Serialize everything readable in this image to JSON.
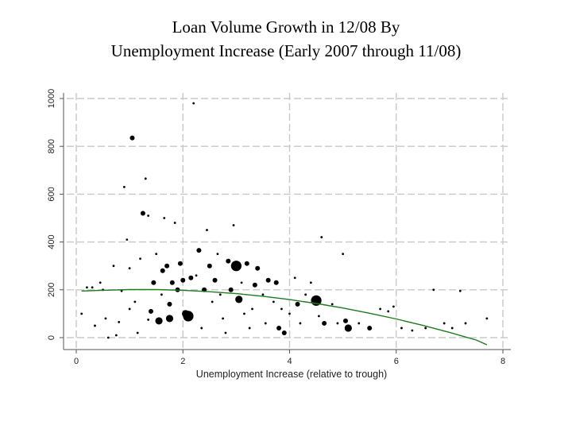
{
  "title": {
    "line1": "Loan Volume Growth in 12/08 By",
    "line2": "Unemployment Increase (Early 2007 through 11/08)"
  },
  "colors": {
    "points": "#000000",
    "fit_line": "#1e7a1e",
    "grid": "#c8c8c8",
    "axis": "#555555"
  },
  "chart_data": {
    "type": "scatter",
    "title": "Loan Volume Growth in 12/08 By Unemployment Increase (Early 2007 through 11/08)",
    "xlabel": "Unemployment Increase (relative to trough)",
    "ylabel": "",
    "xlim": [
      0,
      8
    ],
    "ylim": [
      0,
      1000
    ],
    "xticks": [
      0,
      2,
      4,
      6,
      8
    ],
    "yticks": [
      0,
      200,
      400,
      600,
      800,
      1000
    ],
    "grid": true,
    "bubble_size_meaning": "relative weight",
    "points": [
      {
        "x": 0.1,
        "y": 100,
        "s": 1
      },
      {
        "x": 0.2,
        "y": 210,
        "s": 1
      },
      {
        "x": 0.3,
        "y": 210,
        "s": 1
      },
      {
        "x": 0.35,
        "y": 50,
        "s": 1
      },
      {
        "x": 0.45,
        "y": 230,
        "s": 1
      },
      {
        "x": 0.5,
        "y": 200,
        "s": 1
      },
      {
        "x": 0.55,
        "y": 80,
        "s": 1
      },
      {
        "x": 0.6,
        "y": 0,
        "s": 1
      },
      {
        "x": 0.7,
        "y": 300,
        "s": 1
      },
      {
        "x": 0.75,
        "y": 10,
        "s": 1
      },
      {
        "x": 0.8,
        "y": 65,
        "s": 1
      },
      {
        "x": 0.85,
        "y": 195,
        "s": 1
      },
      {
        "x": 0.9,
        "y": 630,
        "s": 1
      },
      {
        "x": 0.95,
        "y": 410,
        "s": 1
      },
      {
        "x": 1.0,
        "y": 290,
        "s": 1
      },
      {
        "x": 1.0,
        "y": 120,
        "s": 1
      },
      {
        "x": 1.05,
        "y": 835,
        "s": 2
      },
      {
        "x": 1.1,
        "y": 150,
        "s": 1
      },
      {
        "x": 1.15,
        "y": 20,
        "s": 1
      },
      {
        "x": 1.2,
        "y": 330,
        "s": 1
      },
      {
        "x": 1.25,
        "y": 520,
        "s": 2
      },
      {
        "x": 1.3,
        "y": 665,
        "s": 1
      },
      {
        "x": 1.35,
        "y": 510,
        "s": 1
      },
      {
        "x": 1.35,
        "y": 75,
        "s": 1
      },
      {
        "x": 1.4,
        "y": 110,
        "s": 2
      },
      {
        "x": 1.45,
        "y": 230,
        "s": 2
      },
      {
        "x": 1.5,
        "y": 350,
        "s": 1
      },
      {
        "x": 1.55,
        "y": 70,
        "s": 3
      },
      {
        "x": 1.6,
        "y": 180,
        "s": 1
      },
      {
        "x": 1.62,
        "y": 280,
        "s": 2
      },
      {
        "x": 1.65,
        "y": 500,
        "s": 1
      },
      {
        "x": 1.7,
        "y": 300,
        "s": 2
      },
      {
        "x": 1.75,
        "y": 140,
        "s": 2
      },
      {
        "x": 1.75,
        "y": 80,
        "s": 3
      },
      {
        "x": 1.8,
        "y": 230,
        "s": 2
      },
      {
        "x": 1.85,
        "y": 480,
        "s": 1
      },
      {
        "x": 1.9,
        "y": 200,
        "s": 2
      },
      {
        "x": 1.95,
        "y": 310,
        "s": 2
      },
      {
        "x": 2.0,
        "y": 240,
        "s": 2
      },
      {
        "x": 2.05,
        "y": 100,
        "s": 3
      },
      {
        "x": 2.1,
        "y": 90,
        "s": 4
      },
      {
        "x": 2.15,
        "y": 250,
        "s": 2
      },
      {
        "x": 2.2,
        "y": 980,
        "s": 1
      },
      {
        "x": 2.25,
        "y": 260,
        "s": 1
      },
      {
        "x": 2.3,
        "y": 365,
        "s": 2
      },
      {
        "x": 2.35,
        "y": 40,
        "s": 1
      },
      {
        "x": 2.4,
        "y": 200,
        "s": 2
      },
      {
        "x": 2.45,
        "y": 450,
        "s": 1
      },
      {
        "x": 2.5,
        "y": 300,
        "s": 2
      },
      {
        "x": 2.55,
        "y": 150,
        "s": 1
      },
      {
        "x": 2.6,
        "y": 240,
        "s": 2
      },
      {
        "x": 2.65,
        "y": 350,
        "s": 1
      },
      {
        "x": 2.7,
        "y": 180,
        "s": 1
      },
      {
        "x": 2.75,
        "y": 80,
        "s": 1
      },
      {
        "x": 2.8,
        "y": 20,
        "s": 1
      },
      {
        "x": 2.85,
        "y": 320,
        "s": 2
      },
      {
        "x": 2.9,
        "y": 200,
        "s": 2
      },
      {
        "x": 2.95,
        "y": 470,
        "s": 1
      },
      {
        "x": 3.0,
        "y": 300,
        "s": 4
      },
      {
        "x": 3.05,
        "y": 160,
        "s": 3
      },
      {
        "x": 3.1,
        "y": 230,
        "s": 1
      },
      {
        "x": 3.15,
        "y": 100,
        "s": 1
      },
      {
        "x": 3.2,
        "y": 310,
        "s": 2
      },
      {
        "x": 3.25,
        "y": 40,
        "s": 1
      },
      {
        "x": 3.3,
        "y": 120,
        "s": 1
      },
      {
        "x": 3.35,
        "y": 220,
        "s": 2
      },
      {
        "x": 3.4,
        "y": 290,
        "s": 2
      },
      {
        "x": 3.5,
        "y": 180,
        "s": 1
      },
      {
        "x": 3.55,
        "y": 60,
        "s": 1
      },
      {
        "x": 3.6,
        "y": 240,
        "s": 2
      },
      {
        "x": 3.7,
        "y": 150,
        "s": 1
      },
      {
        "x": 3.75,
        "y": 230,
        "s": 2
      },
      {
        "x": 3.8,
        "y": 40,
        "s": 2
      },
      {
        "x": 3.85,
        "y": 120,
        "s": 1
      },
      {
        "x": 3.9,
        "y": 20,
        "s": 2
      },
      {
        "x": 4.0,
        "y": 100,
        "s": 1
      },
      {
        "x": 4.1,
        "y": 250,
        "s": 1
      },
      {
        "x": 4.15,
        "y": 140,
        "s": 2
      },
      {
        "x": 4.2,
        "y": 60,
        "s": 1
      },
      {
        "x": 4.3,
        "y": 180,
        "s": 1
      },
      {
        "x": 4.4,
        "y": 230,
        "s": 1
      },
      {
        "x": 4.5,
        "y": 155,
        "s": 4
      },
      {
        "x": 4.55,
        "y": 90,
        "s": 1
      },
      {
        "x": 4.6,
        "y": 420,
        "s": 1
      },
      {
        "x": 4.65,
        "y": 60,
        "s": 2
      },
      {
        "x": 4.8,
        "y": 140,
        "s": 1
      },
      {
        "x": 4.9,
        "y": 60,
        "s": 1
      },
      {
        "x": 5.0,
        "y": 350,
        "s": 1
      },
      {
        "x": 5.05,
        "y": 70,
        "s": 2
      },
      {
        "x": 5.1,
        "y": 40,
        "s": 3
      },
      {
        "x": 5.3,
        "y": 60,
        "s": 1
      },
      {
        "x": 5.5,
        "y": 40,
        "s": 2
      },
      {
        "x": 5.7,
        "y": 120,
        "s": 1
      },
      {
        "x": 5.85,
        "y": 110,
        "s": 1
      },
      {
        "x": 5.95,
        "y": 130,
        "s": 1
      },
      {
        "x": 6.1,
        "y": 40,
        "s": 1
      },
      {
        "x": 6.3,
        "y": 30,
        "s": 1
      },
      {
        "x": 6.55,
        "y": 40,
        "s": 1
      },
      {
        "x": 6.7,
        "y": 200,
        "s": 1
      },
      {
        "x": 6.9,
        "y": 60,
        "s": 1
      },
      {
        "x": 7.05,
        "y": 40,
        "s": 1
      },
      {
        "x": 7.2,
        "y": 195,
        "s": 1
      },
      {
        "x": 7.3,
        "y": 60,
        "s": 1
      },
      {
        "x": 7.7,
        "y": 80,
        "s": 1
      }
    ],
    "fit_line": {
      "x": [
        0.1,
        0.5,
        1.0,
        1.5,
        2.0,
        2.5,
        3.0,
        3.5,
        4.0,
        4.5,
        5.0,
        5.5,
        6.0,
        6.5,
        7.0,
        7.5,
        7.7
      ],
      "y": [
        195,
        198,
        201,
        201,
        198,
        192,
        184,
        173,
        159,
        143,
        124,
        102,
        78,
        51,
        22,
        -10,
        -30
      ]
    }
  }
}
